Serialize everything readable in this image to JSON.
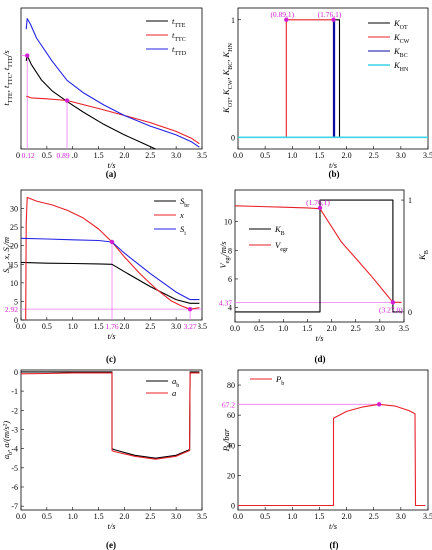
{
  "colors": {
    "black": "#000000",
    "red": "#e8202a",
    "blue": "#2323e6",
    "dark_blue": "#0a0aa0",
    "cyan": "#3fd3e8",
    "magenta": "#d21fd2",
    "pink_line": "#f07cf0"
  },
  "chart_data": [
    {
      "id": "a",
      "type": "line",
      "panel_label": "(a)",
      "xlabel": "t/s",
      "ylabel": "tTTE, tTTC, tTTD/s",
      "xlim": [
        0,
        3.5
      ],
      "xticks": [
        0,
        0.5,
        1.0,
        1.5,
        2.0,
        2.5,
        3.0,
        3.5
      ],
      "xtick_labels": [
        "0.0",
        "0.5",
        "1.0",
        "1.5",
        "2.0",
        "2.5",
        "3.0",
        "3.5"
      ],
      "ylim": [
        0,
        8
      ],
      "yticks": [],
      "legend": "top-right",
      "series": [
        {
          "name": "tTTE",
          "color": "black",
          "x": [
            0.1,
            0.12,
            0.2,
            0.4,
            0.6,
            0.89,
            1.2,
            1.6,
            2.0,
            2.3,
            2.6
          ],
          "y": [
            5.0,
            5.3,
            4.8,
            3.9,
            3.3,
            2.7,
            2.1,
            1.4,
            0.8,
            0.4,
            0.0
          ]
        },
        {
          "name": "tTTC",
          "color": "red",
          "x": [
            0.1,
            0.2,
            0.5,
            0.89,
            1.5,
            2.0,
            2.5,
            3.0,
            3.3,
            3.45
          ],
          "y": [
            3.0,
            2.9,
            2.85,
            2.75,
            2.3,
            1.9,
            1.5,
            1.0,
            0.6,
            0.3
          ]
        },
        {
          "name": "tTTD",
          "color": "blue",
          "x": [
            0.1,
            0.12,
            0.18,
            0.3,
            0.6,
            0.89,
            1.2,
            1.6,
            2.0,
            2.5,
            3.0,
            3.3,
            3.45
          ],
          "y": [
            6.8,
            7.4,
            7.1,
            6.3,
            5.0,
            3.9,
            3.2,
            2.5,
            1.9,
            1.3,
            0.8,
            0.4,
            0.1
          ]
        }
      ],
      "markers": [
        {
          "x": 0.12,
          "y": 5.3,
          "label": "0.12"
        },
        {
          "x": 0.89,
          "y": 2.75,
          "label": "0.89"
        }
      ]
    },
    {
      "id": "b",
      "type": "line",
      "panel_label": "(b)",
      "xlabel": "t/s",
      "ylabel": "KOT, KCW, KBC, KHN",
      "xlim": [
        0,
        3.5
      ],
      "xticks": [
        0,
        0.5,
        1.0,
        1.5,
        2.0,
        2.5,
        3.0,
        3.5
      ],
      "xtick_labels": [
        "0.0",
        "0.5",
        "1.0",
        "1.5",
        "2.0",
        "2.5",
        "3.0",
        "3.5"
      ],
      "ylim": [
        -0.1,
        1.1
      ],
      "yticks": [
        0,
        1
      ],
      "ytick_labels": [
        "0",
        "1"
      ],
      "legend": "right",
      "series": [
        {
          "name": "KOT",
          "color": "black",
          "x": [
            0,
            1.76,
            1.76,
            1.87,
            1.87,
            3.5
          ],
          "y": [
            0,
            0,
            1,
            1,
            0,
            0
          ]
        },
        {
          "name": "KCW",
          "color": "red",
          "x": [
            0,
            0.89,
            0.89,
            1.76,
            1.76,
            3.5
          ],
          "y": [
            0,
            0,
            1,
            1,
            0,
            0
          ]
        },
        {
          "name": "KBC",
          "color": "dark_blue",
          "x": [
            0,
            1.76,
            1.76,
            1.78,
            1.78,
            1.86,
            1.86,
            3.5
          ],
          "y": [
            0,
            0,
            1,
            1,
            0,
            0,
            0,
            0
          ]
        },
        {
          "name": "KHN",
          "color": "cyan",
          "x": [
            0,
            3.5
          ],
          "y": [
            0,
            0
          ]
        }
      ],
      "markers": [
        {
          "x": 0.89,
          "y": 1,
          "label": "(0.89,1)"
        },
        {
          "x": 1.76,
          "y": 1,
          "label": "(1.76,1)"
        }
      ]
    },
    {
      "id": "c",
      "type": "line",
      "panel_label": "(c)",
      "xlabel": "t/s",
      "ylabel": "Sbr, x, Si/m",
      "xlim": [
        0,
        3.5
      ],
      "xticks": [
        0,
        0.5,
        1.0,
        1.5,
        2.0,
        2.5,
        3.0,
        3.5
      ],
      "xtick_labels": [
        "0.0",
        "0.5",
        "1.0",
        "1.5",
        "2.0",
        "2.5",
        "3.0",
        "3.5"
      ],
      "ylim": [
        0,
        35
      ],
      "yticks": [
        0,
        5,
        10,
        15,
        20,
        25,
        30
      ],
      "ytick_labels": [
        "0",
        "5",
        "10",
        "15",
        "20",
        "25",
        "30"
      ],
      "legend": "top-right",
      "series": [
        {
          "name": "Sbr",
          "color": "black",
          "x": [
            0,
            0.5,
            1.0,
            1.5,
            1.76,
            2.0,
            2.5,
            3.0,
            3.27,
            3.45
          ],
          "y": [
            15.5,
            15.3,
            15.2,
            15.1,
            15.0,
            13.0,
            9.0,
            5.5,
            4.5,
            4.5
          ]
        },
        {
          "name": "x",
          "color": "red",
          "x": [
            0.09,
            0.1,
            0.12,
            0.3,
            0.6,
            0.9,
            1.2,
            1.5,
            1.76,
            2.0,
            2.3,
            2.6,
            2.9,
            3.1,
            3.27,
            3.45
          ],
          "y": [
            0,
            26,
            33.0,
            32.0,
            31.0,
            29.5,
            27.5,
            24.5,
            21.0,
            17.0,
            12.5,
            8.5,
            5.2,
            3.8,
            2.92,
            3.3
          ]
        },
        {
          "name": "Si",
          "color": "blue",
          "x": [
            0,
            0.5,
            1.0,
            1.5,
            1.76,
            2.0,
            2.5,
            3.0,
            3.27,
            3.45
          ],
          "y": [
            22.0,
            21.8,
            21.6,
            21.4,
            21.0,
            18.0,
            12.5,
            7.5,
            5.5,
            5.5
          ]
        }
      ],
      "markers": [
        {
          "x": 1.76,
          "y": 21.0,
          "label": "1.76"
        },
        {
          "x": 3.27,
          "y": 2.92,
          "label": "3.27"
        }
      ],
      "ref_labels": [
        "2.92"
      ]
    },
    {
      "id": "d",
      "type": "line",
      "panel_label": "(d)",
      "xlabel": "t/s",
      "ylabel": "Vegr/m/s",
      "ylabel_right": "KB",
      "xlim": [
        0,
        3.5
      ],
      "xticks": [
        0,
        0.5,
        1.0,
        1.5,
        2.0,
        2.5,
        3.0,
        3.5
      ],
      "xtick_labels": [
        "0.0",
        "0.5",
        "1.0",
        "1.5",
        "2.0",
        "2.5",
        "3.0",
        "3.5"
      ],
      "ylim": [
        3,
        12.2
      ],
      "yticks": [
        4,
        6,
        8,
        10
      ],
      "ytick_labels": [
        "4",
        "6",
        "8",
        "10"
      ],
      "ylim_right": [
        -0.09,
        1.09
      ],
      "yticks_right": [
        0,
        1
      ],
      "ytick_labels_right": [
        "0",
        "1"
      ],
      "legend": "center-left",
      "series": [
        {
          "name": "KB",
          "color": "black",
          "axis": "right",
          "x": [
            0,
            1.76,
            1.76,
            3.27,
            3.27,
            3.45
          ],
          "y": [
            0,
            0,
            1,
            1,
            0,
            0
          ]
        },
        {
          "name": "Vegr",
          "color": "red",
          "axis": "left",
          "x": [
            0,
            0.5,
            1.0,
            1.5,
            1.76,
            2.2,
            2.8,
            3.27,
            3.45
          ],
          "y": [
            11.1,
            11.05,
            11.0,
            10.95,
            10.9,
            8.6,
            6.3,
            4.37,
            4.37
          ]
        }
      ],
      "markers": [
        {
          "x": 1.76,
          "y": 10.95,
          "label": "(1.76,1)"
        },
        {
          "x": 3.27,
          "y": 4.37,
          "label": "(3.27,0)"
        }
      ],
      "ref_labels": [
        "4.37"
      ]
    },
    {
      "id": "e",
      "type": "line",
      "panel_label": "(e)",
      "xlabel": "t/s",
      "ylabel": "ab, a/(m/s²)",
      "xlim": [
        0,
        3.5
      ],
      "xticks": [
        0,
        0.5,
        1.0,
        1.5,
        2.0,
        2.5,
        3.0,
        3.5
      ],
      "xtick_labels": [
        "0.0",
        "0.5",
        "1.0",
        "1.5",
        "2.0",
        "2.5",
        "3.0",
        "3.5"
      ],
      "ylim": [
        -7.2,
        0.1
      ],
      "yticks": [
        0,
        -1,
        -2,
        -3,
        -4,
        -5,
        -6,
        -7
      ],
      "ytick_labels": [
        "0",
        "-1",
        "-2",
        "-3",
        "-4",
        "-5",
        "-6",
        "-7"
      ],
      "legend": "top-right",
      "series": [
        {
          "name": "ab",
          "color": "black",
          "x": [
            0,
            1.76,
            1.76,
            1.8,
            2.2,
            2.6,
            3.0,
            3.26,
            3.27,
            3.45
          ],
          "y": [
            0,
            0,
            -4.0,
            -4.05,
            -4.35,
            -4.5,
            -4.35,
            -4.05,
            0,
            0
          ]
        },
        {
          "name": "a",
          "color": "red",
          "x": [
            0,
            0.5,
            1.0,
            1.76,
            1.76,
            1.8,
            2.2,
            2.6,
            3.0,
            3.26,
            3.27,
            3.45
          ],
          "y": [
            -0.1,
            -0.08,
            -0.05,
            -0.05,
            -4.1,
            -4.15,
            -4.4,
            -4.55,
            -4.4,
            -4.1,
            -0.05,
            -0.05
          ]
        }
      ]
    },
    {
      "id": "f",
      "type": "line",
      "panel_label": "(f)",
      "xlabel": "t/s",
      "ylabel": "Pb/bar",
      "xlim": [
        0,
        3.5
      ],
      "xticks": [
        0,
        0.5,
        1.0,
        1.5,
        2.0,
        2.5,
        3.0,
        3.5
      ],
      "xtick_labels": [
        "0.0",
        "0.5",
        "1.0",
        "1.5",
        "2.0",
        "2.5",
        "3.0",
        "3.5"
      ],
      "ylim": [
        -3,
        90
      ],
      "yticks": [
        0,
        20,
        40,
        60,
        80
      ],
      "ytick_labels": [
        "0",
        "20",
        "40",
        "60",
        "80"
      ],
      "legend": "top-left",
      "series": [
        {
          "name": "Pb",
          "color": "red",
          "x": [
            0,
            1.76,
            1.76,
            2.0,
            2.3,
            2.6,
            2.9,
            3.15,
            3.26,
            3.27,
            3.45
          ],
          "y": [
            0,
            0,
            58.0,
            62.5,
            65.5,
            67.2,
            66.0,
            63.0,
            61.0,
            0,
            0
          ]
        }
      ],
      "markers": [
        {
          "x": 2.6,
          "y": 67.2,
          "label": ""
        }
      ],
      "ref_labels": [
        "67.2"
      ]
    }
  ]
}
